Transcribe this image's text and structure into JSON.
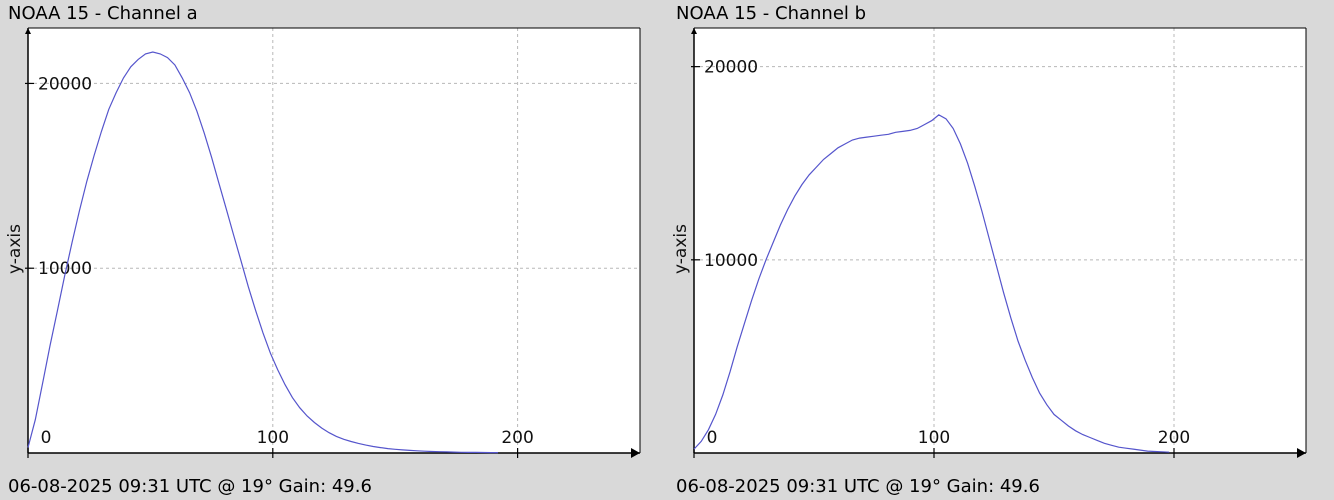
{
  "chart_data": [
    {
      "type": "line",
      "title": "NOAA 15 - Channel a",
      "xlabel": "",
      "ylabel": "y-axis",
      "footer": "06-08-2025 09:31 UTC @ 19° Gain: 49.6",
      "xlim": [
        0,
        250
      ],
      "ylim": [
        0,
        23000
      ],
      "xticks": [
        0,
        100,
        200
      ],
      "yticks": [
        10000,
        20000
      ],
      "grid": true,
      "line_color": "#5555cc",
      "series": [
        {
          "x": [
            0,
            3,
            6,
            9,
            12,
            15,
            18,
            21,
            24,
            27,
            30,
            33,
            36,
            39,
            42,
            45,
            48,
            51,
            54,
            57,
            60,
            63,
            66,
            69,
            72,
            75,
            78,
            81,
            84,
            87,
            90,
            93,
            96,
            99,
            102,
            105,
            108,
            111,
            114,
            117,
            120,
            123,
            126,
            129,
            132,
            135,
            138,
            141,
            144,
            147,
            150,
            153,
            156,
            159,
            162,
            165,
            168,
            171,
            174,
            177,
            180,
            183,
            186,
            189,
            192
          ],
          "y": [
            300,
            1800,
            3800,
            5800,
            7700,
            9600,
            11400,
            13100,
            14700,
            16100,
            17400,
            18600,
            19500,
            20300,
            20900,
            21300,
            21600,
            21700,
            21600,
            21400,
            21000,
            20300,
            19500,
            18500,
            17300,
            16000,
            14600,
            13200,
            11800,
            10400,
            9000,
            7700,
            6500,
            5400,
            4500,
            3700,
            3000,
            2450,
            2000,
            1650,
            1350,
            1100,
            900,
            740,
            620,
            520,
            430,
            350,
            290,
            240,
            200,
            170,
            140,
            120,
            100,
            80,
            70,
            60,
            50,
            40,
            35,
            30,
            25,
            20,
            20
          ]
        }
      ]
    },
    {
      "type": "line",
      "title": "NOAA 15 - Channel b",
      "xlabel": "",
      "ylabel": "y-axis",
      "footer": "06-08-2025 09:31 UTC @ 19° Gain: 49.6",
      "xlim": [
        0,
        255
      ],
      "ylim": [
        0,
        22000
      ],
      "xticks": [
        0,
        100,
        200
      ],
      "yticks": [
        10000,
        20000
      ],
      "grid": true,
      "line_color": "#5555cc",
      "series": [
        {
          "x": [
            0,
            3,
            6,
            9,
            12,
            15,
            18,
            21,
            24,
            27,
            30,
            33,
            36,
            39,
            42,
            45,
            48,
            51,
            54,
            57,
            60,
            63,
            66,
            69,
            72,
            75,
            78,
            81,
            84,
            87,
            90,
            93,
            96,
            99,
            102,
            105,
            108,
            111,
            114,
            117,
            120,
            123,
            126,
            129,
            132,
            135,
            138,
            141,
            144,
            147,
            150,
            153,
            156,
            159,
            162,
            165,
            168,
            171,
            174,
            177,
            180,
            183,
            186,
            189,
            192,
            195,
            198
          ],
          "y": [
            200,
            600,
            1200,
            2000,
            3000,
            4200,
            5500,
            6700,
            7900,
            9000,
            10000,
            10900,
            11800,
            12600,
            13300,
            13900,
            14400,
            14800,
            15200,
            15500,
            15800,
            16000,
            16200,
            16300,
            16350,
            16400,
            16450,
            16500,
            16600,
            16650,
            16700,
            16800,
            17000,
            17200,
            17500,
            17300,
            16800,
            16000,
            15000,
            13800,
            12500,
            11100,
            9700,
            8300,
            7000,
            5800,
            4800,
            3900,
            3100,
            2500,
            2000,
            1700,
            1400,
            1150,
            950,
            800,
            650,
            500,
            400,
            300,
            250,
            200,
            150,
            100,
            80,
            60,
            40
          ]
        }
      ]
    }
  ]
}
